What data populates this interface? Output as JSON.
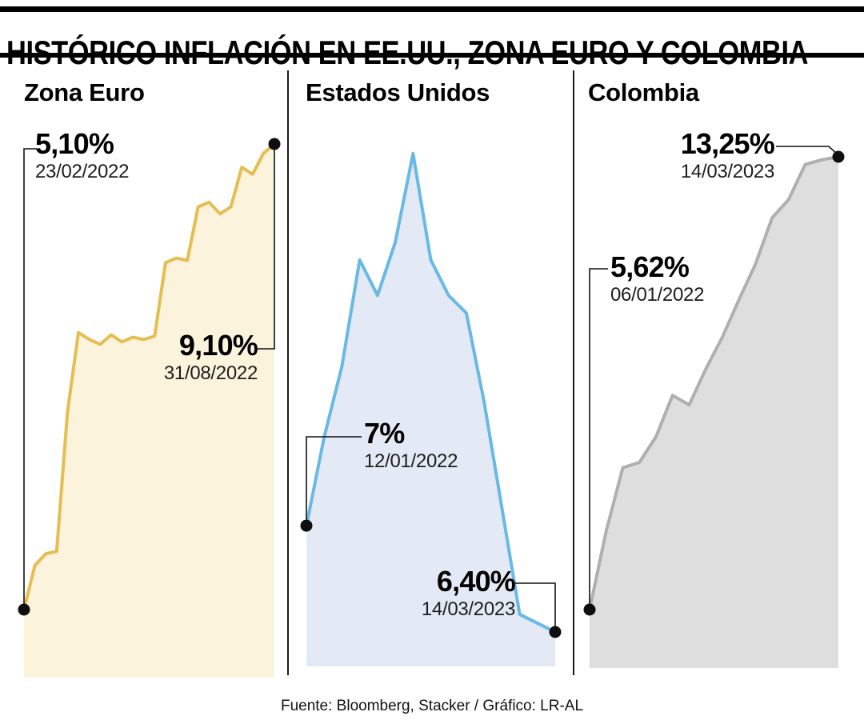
{
  "title": "HISTÓRICO INFLACIÓN EN EE.UU., ZONA EURO Y COLOMBIA",
  "footer": "Fuente: Bloomberg, Stacker / Gráfico: LR-AL",
  "colors": {
    "euro_line": "#E5BE52",
    "euro_fill": "#FBF3DC",
    "us_line": "#69B9E5",
    "us_fill": "#E3EAF5",
    "colombia_line": "#AFAFAF",
    "colombia_fill": "#DEDEDE",
    "dot": "#0F0F0F",
    "rule": "#000000"
  },
  "chart_data": [
    {
      "type": "area",
      "title": "Zona Euro",
      "unit": "%",
      "line_color": "#E5BE52",
      "fill_color": "#FBF3DC",
      "ylim": [
        5.1,
        9.1
      ],
      "values": [
        5.1,
        5.48,
        5.58,
        5.6,
        6.8,
        7.48,
        7.42,
        7.38,
        7.46,
        7.4,
        7.44,
        7.42,
        7.45,
        8.08,
        8.12,
        8.1,
        8.56,
        8.6,
        8.5,
        8.56,
        8.9,
        8.84,
        9.02,
        9.1
      ],
      "annotations": [
        {
          "value": "5,10%",
          "date": "23/02/2022",
          "point": "start"
        },
        {
          "value": "9,10%",
          "date": "31/08/2022",
          "point": "end"
        }
      ]
    },
    {
      "type": "area",
      "title": "Estados Unidos",
      "unit": "%",
      "line_color": "#69B9E5",
      "fill_color": "#E3EAF5",
      "ylim": [
        6.4,
        9.1
      ],
      "values": [
        7.0,
        7.5,
        7.9,
        8.5,
        8.3,
        8.6,
        9.1,
        8.5,
        8.3,
        8.2,
        7.7,
        7.1,
        6.5,
        6.45,
        6.4
      ],
      "annotations": [
        {
          "value": "7%",
          "date": "12/01/2022",
          "point": "start"
        },
        {
          "value": "6,40%",
          "date": "14/03/2023",
          "point": "end"
        }
      ]
    },
    {
      "type": "area",
      "title": "Colombia",
      "unit": "%",
      "line_color": "#AFAFAF",
      "fill_color": "#DEDEDE",
      "ylim": [
        5.62,
        13.25
      ],
      "values": [
        5.62,
        6.94,
        8.01,
        8.1,
        8.53,
        9.23,
        9.07,
        9.67,
        10.21,
        10.84,
        11.44,
        12.22,
        12.53,
        13.12,
        13.2,
        13.25
      ],
      "annotations": [
        {
          "value": "5,62%",
          "date": "06/01/2022",
          "point": "start"
        },
        {
          "value": "13,25%",
          "date": "14/03/2023",
          "point": "end"
        }
      ]
    }
  ]
}
